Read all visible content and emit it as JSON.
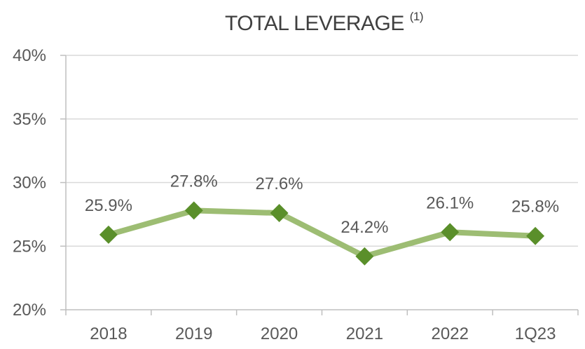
{
  "chart_data": {
    "type": "line",
    "title": "TOTAL LEVERAGE",
    "title_footnote": "(1)",
    "xlabel": "",
    "ylabel": "",
    "categories": [
      "2018",
      "2019",
      "2020",
      "2021",
      "2022",
      "1Q23"
    ],
    "series": [
      {
        "values": [
          25.9,
          27.8,
          27.6,
          24.2,
          26.1,
          25.8
        ],
        "data_labels": [
          "25.9%",
          "27.8%",
          "27.6%",
          "24.2%",
          "26.1%",
          "25.8%"
        ],
        "line_color": "#9dbd73",
        "marker_color": "#5a8f2a",
        "marker": "diamond"
      }
    ],
    "ylim": [
      20,
      40
    ],
    "yticks": [
      20,
      25,
      30,
      35,
      40
    ],
    "ytick_labels": [
      "20%",
      "25%",
      "30%",
      "35%",
      "40%"
    ],
    "grid": true,
    "legend": "none"
  },
  "colors": {
    "grid": "#d9d9d9",
    "axis": "#bfbfbf",
    "text": "#595959"
  }
}
